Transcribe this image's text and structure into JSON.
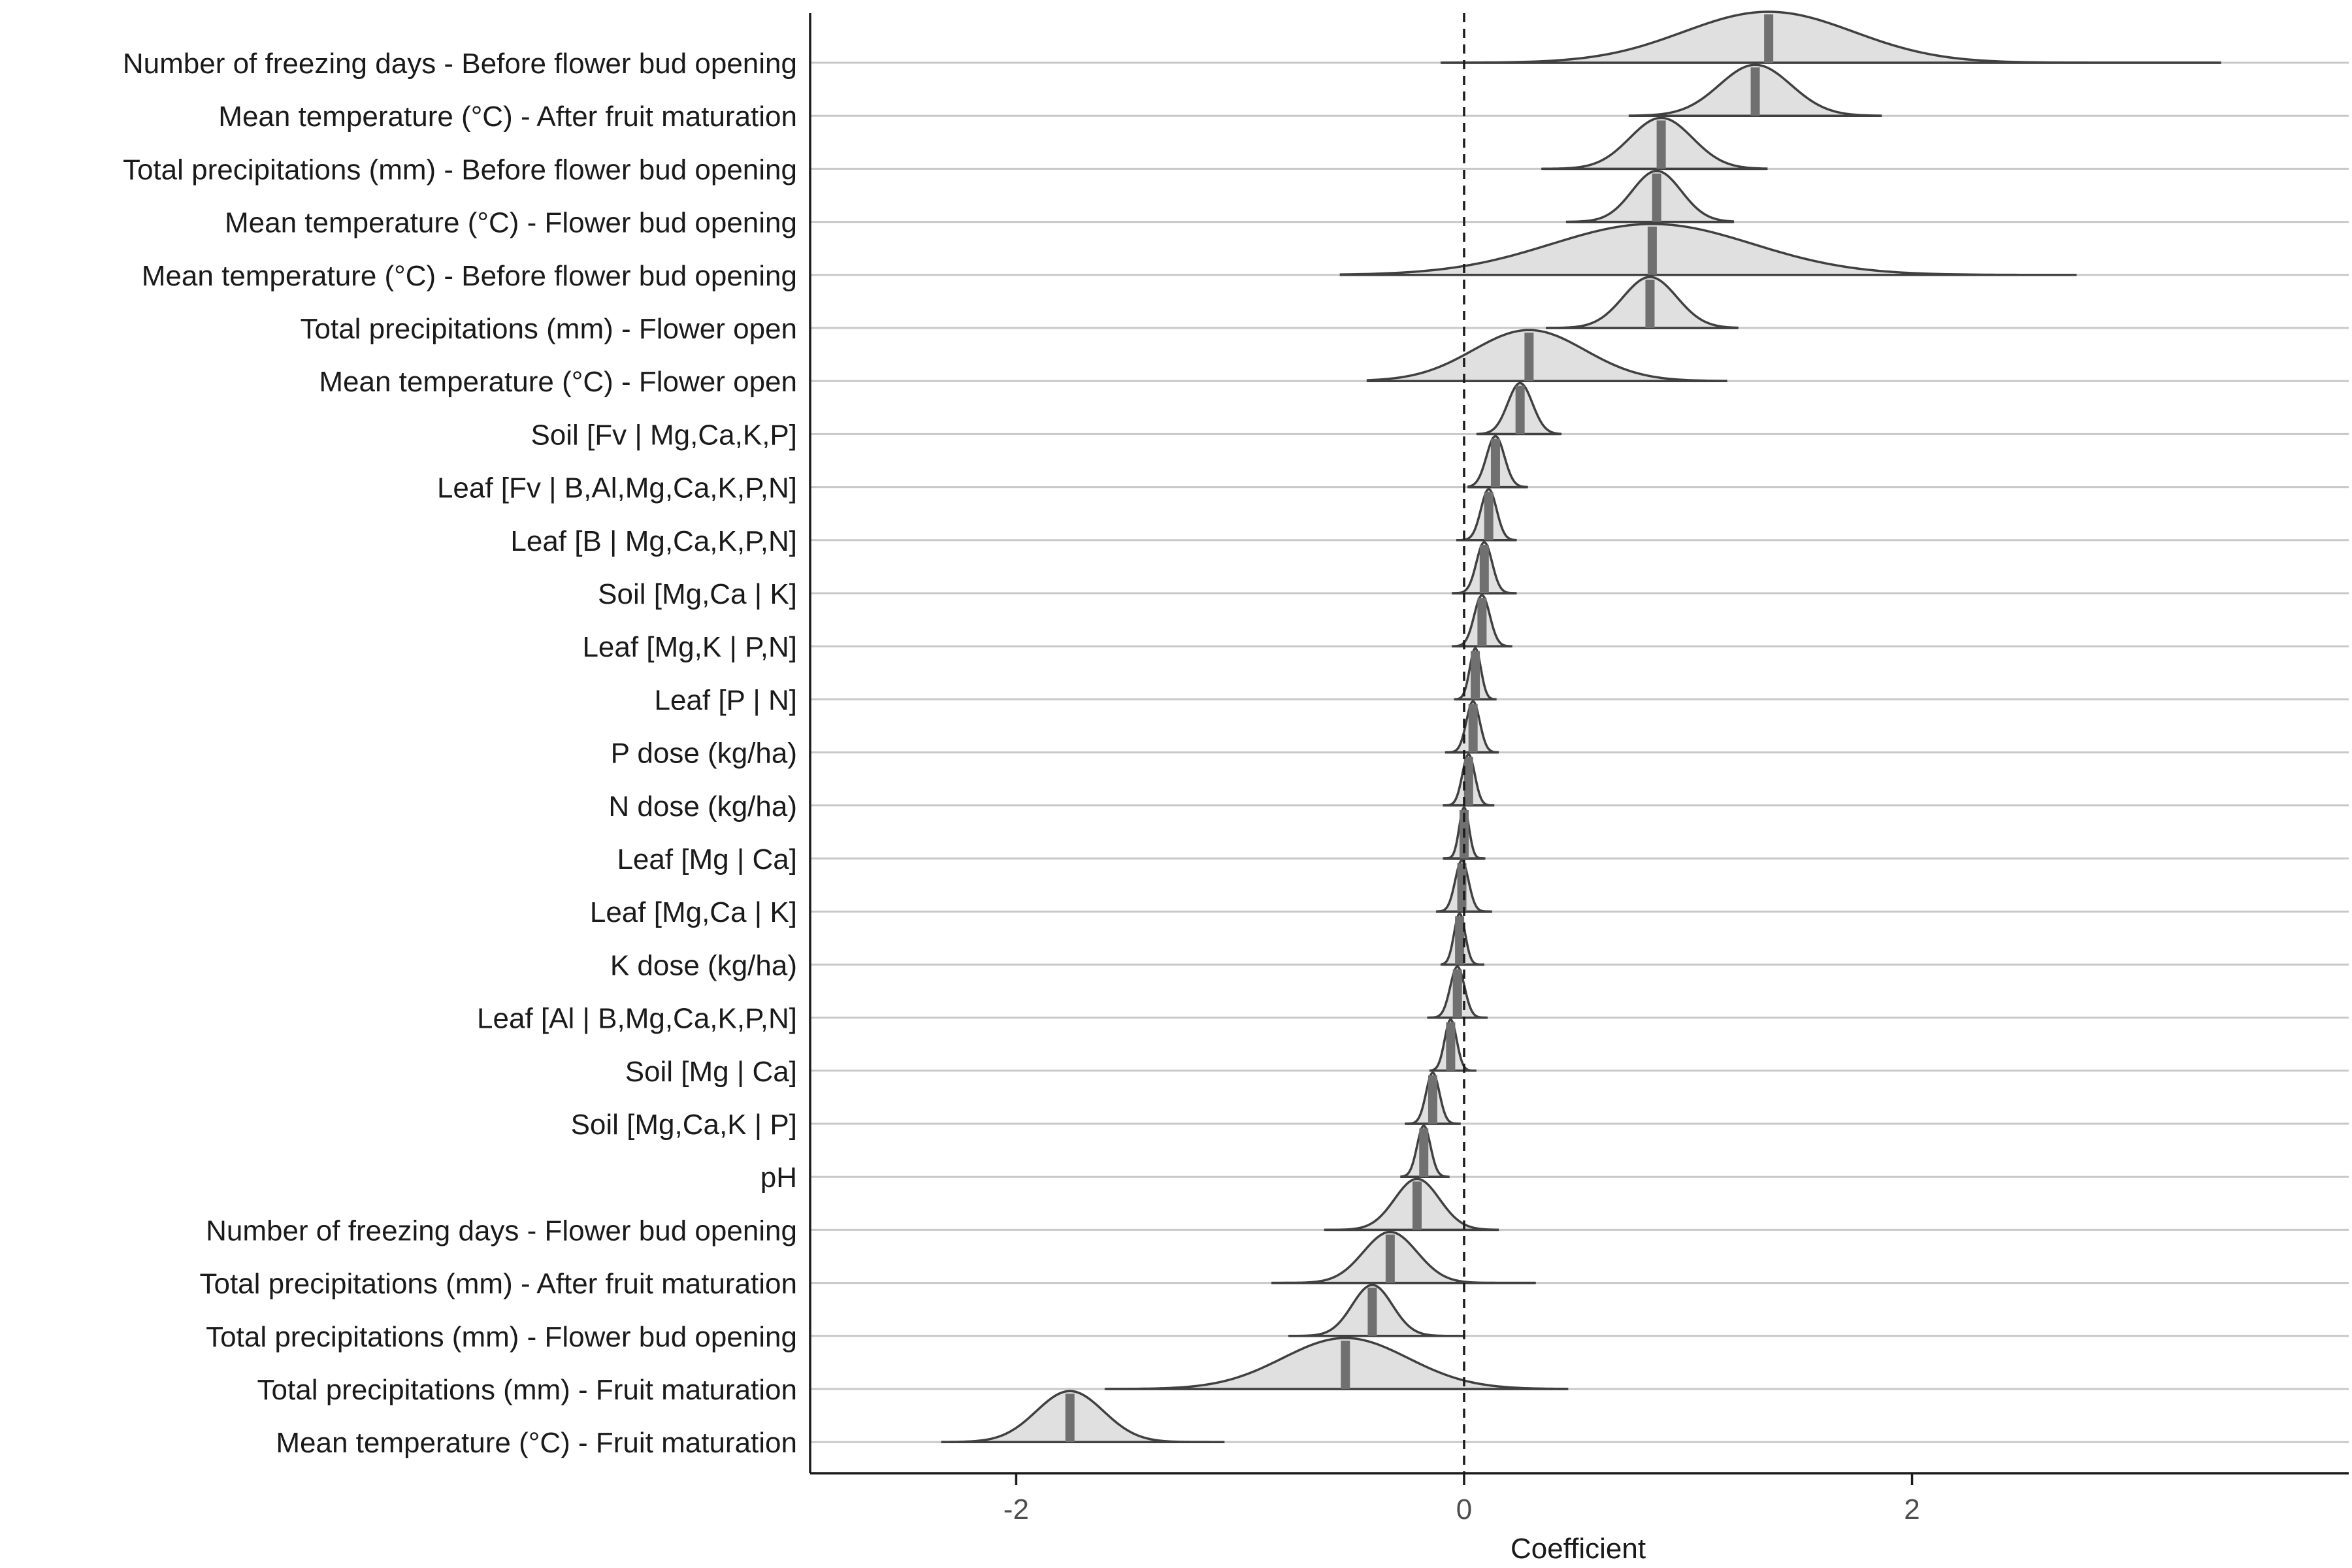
{
  "chart_data": {
    "type": "ridgeline",
    "xlabel": "Coefficient",
    "xlim": [
      -2.92,
      3.95
    ],
    "xticks": [
      -2,
      0,
      2
    ],
    "reference_line": 0,
    "grid": "horizontal-rows",
    "series": [
      {
        "name": "Number of freezing days - Before flower bud opening",
        "mean": 1.36,
        "min": -0.1,
        "max": 3.38,
        "peak": 1.36,
        "sd": 0.38
      },
      {
        "name": "Mean temperature (°C) - After fruit maturation",
        "mean": 1.3,
        "min": 0.74,
        "max": 1.86,
        "peak": 1.3,
        "sd": 0.16
      },
      {
        "name": "Total precipitations (mm) - Before flower bud opening",
        "mean": 0.88,
        "min": 0.35,
        "max": 1.35,
        "peak": 0.88,
        "sd": 0.14
      },
      {
        "name": "Mean temperature (°C) - Flower bud opening",
        "mean": 0.86,
        "min": 0.46,
        "max": 1.2,
        "peak": 0.86,
        "sd": 0.11
      },
      {
        "name": "Mean temperature (°C) - Before flower bud opening",
        "mean": 0.84,
        "min": -0.55,
        "max": 2.73,
        "peak": 0.84,
        "sd": 0.45
      },
      {
        "name": "Total precipitations (mm) - Flower open",
        "mean": 0.83,
        "min": 0.37,
        "max": 1.22,
        "peak": 0.83,
        "sd": 0.12
      },
      {
        "name": "Mean temperature (°C) - Flower open",
        "mean": 0.29,
        "min": -0.43,
        "max": 1.17,
        "peak": 0.29,
        "sd": 0.25
      },
      {
        "name": "Soil [Fv | Mg,Ca,K,P]",
        "mean": 0.25,
        "min": 0.06,
        "max": 0.43,
        "peak": 0.25,
        "sd": 0.055
      },
      {
        "name": "Leaf [Fv | B,Al,Mg,Ca,K,P,N]",
        "mean": 0.14,
        "min": 0.02,
        "max": 0.28,
        "peak": 0.14,
        "sd": 0.04
      },
      {
        "name": "Leaf [B | Mg,Ca,K,P,N]",
        "mean": 0.11,
        "min": -0.03,
        "max": 0.23,
        "peak": 0.11,
        "sd": 0.035
      },
      {
        "name": "Soil [Mg,Ca | K]",
        "mean": 0.09,
        "min": -0.05,
        "max": 0.23,
        "peak": 0.09,
        "sd": 0.035
      },
      {
        "name": "Leaf [Mg,K | P,N]",
        "mean": 0.08,
        "min": -0.05,
        "max": 0.21,
        "peak": 0.08,
        "sd": 0.035
      },
      {
        "name": "Leaf [P | N]",
        "mean": 0.05,
        "min": -0.04,
        "max": 0.14,
        "peak": 0.05,
        "sd": 0.025
      },
      {
        "name": "P dose (kg/ha)",
        "mean": 0.04,
        "min": -0.08,
        "max": 0.15,
        "peak": 0.04,
        "sd": 0.03
      },
      {
        "name": "N dose (kg/ha)",
        "mean": 0.02,
        "min": -0.09,
        "max": 0.13,
        "peak": 0.02,
        "sd": 0.028
      },
      {
        "name": "Leaf [Mg | Ca]",
        "mean": 0.0,
        "min": -0.09,
        "max": 0.09,
        "peak": 0.0,
        "sd": 0.022
      },
      {
        "name": "Leaf [Mg,Ca | K]",
        "mean": -0.01,
        "min": -0.12,
        "max": 0.12,
        "peak": -0.01,
        "sd": 0.03
      },
      {
        "name": "K dose (kg/ha)",
        "mean": -0.02,
        "min": -0.1,
        "max": 0.09,
        "peak": -0.02,
        "sd": 0.025
      },
      {
        "name": "Leaf [Al | B,Mg,Ca,K,P,N]",
        "mean": -0.03,
        "min": -0.16,
        "max": 0.1,
        "peak": -0.03,
        "sd": 0.032
      },
      {
        "name": "Soil [Mg | Ca]",
        "mean": -0.06,
        "min": -0.15,
        "max": 0.05,
        "peak": -0.06,
        "sd": 0.027
      },
      {
        "name": "Soil [Mg,Ca,K | P]",
        "mean": -0.14,
        "min": -0.26,
        "max": -0.02,
        "peak": -0.14,
        "sd": 0.03
      },
      {
        "name": "pH",
        "mean": -0.18,
        "min": -0.28,
        "max": -0.07,
        "peak": -0.18,
        "sd": 0.03
      },
      {
        "name": "Number of freezing days - Flower bud opening",
        "mean": -0.21,
        "min": -0.62,
        "max": 0.15,
        "peak": -0.21,
        "sd": 0.1
      },
      {
        "name": "Total precipitations (mm) - After fruit maturation",
        "mean": -0.33,
        "min": -0.86,
        "max": 0.32,
        "peak": -0.33,
        "sd": 0.12
      },
      {
        "name": "Total precipitations (mm) - Flower bud opening",
        "mean": -0.41,
        "min": -0.78,
        "max": 0.0,
        "peak": -0.41,
        "sd": 0.09
      },
      {
        "name": "Total precipitations (mm) - Fruit maturation",
        "mean": -0.53,
        "min": -1.6,
        "max": 0.46,
        "peak": -0.53,
        "sd": 0.28
      },
      {
        "name": "Mean temperature (°C) - Fruit maturation",
        "mean": -1.76,
        "min": -2.33,
        "max": -1.07,
        "peak": -1.76,
        "sd": 0.15
      }
    ]
  }
}
